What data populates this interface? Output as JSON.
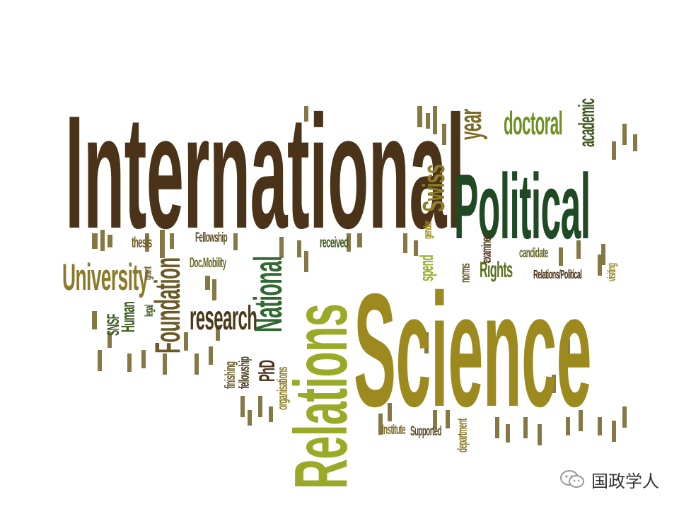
{
  "word_cloud": {
    "words": [
      {
        "text": "International",
        "color": "#4a3318"
      },
      {
        "text": "Science",
        "color": "#9c8a1e"
      },
      {
        "text": "Political",
        "color": "#1f4a24"
      },
      {
        "text": "Relations",
        "color": "#9aaa28"
      },
      {
        "text": "National",
        "color": "#2f6b30"
      },
      {
        "text": "University",
        "color": "#8a7a2a"
      },
      {
        "text": "Foundation",
        "color": "#6b5a28"
      },
      {
        "text": "research",
        "color": "#4a3a1a"
      },
      {
        "text": "doctoral",
        "color": "#6f8f22"
      },
      {
        "text": "academic",
        "color": "#3e5a1c"
      },
      {
        "text": "Swiss",
        "color": "#8d7e2a"
      },
      {
        "text": "year",
        "color": "#7a6a24"
      },
      {
        "text": "Human",
        "color": "#3a5a1e"
      },
      {
        "text": "SNSF",
        "color": "#3a5a1e"
      },
      {
        "text": "Rights",
        "color": "#5a6e1c"
      },
      {
        "text": "PhD",
        "color": "#4a3318"
      },
      {
        "text": "thesis",
        "color": "#6b5a28"
      },
      {
        "text": "spend",
        "color": "#9aaa28"
      },
      {
        "text": "Fellowship",
        "color": "#5a4a24"
      },
      {
        "text": "Doc.Mobility",
        "color": "#6b6a2c"
      },
      {
        "text": "received",
        "color": "#3e5a1c"
      },
      {
        "text": "organisations",
        "color": "#8d7e2a"
      },
      {
        "text": "fellowship",
        "color": "#4a3a1a"
      },
      {
        "text": "finishing",
        "color": "#6b5a28"
      },
      {
        "text": "Institute",
        "color": "#7a6a24"
      },
      {
        "text": "Supported",
        "color": "#5a4a24"
      },
      {
        "text": "department",
        "color": "#8a7a2a"
      },
      {
        "text": "norms",
        "color": "#6b5a28"
      },
      {
        "text": "gender",
        "color": "#9c8a1e"
      },
      {
        "text": "examines",
        "color": "#4a3318"
      },
      {
        "text": "candidate",
        "color": "#6b6a2c"
      },
      {
        "text": "Relations/Political",
        "color": "#4a3318"
      },
      {
        "text": "visiting",
        "color": "#9c8a1e"
      },
      {
        "text": "legal",
        "color": "#3e5a1c"
      },
      {
        "text": "grant",
        "color": "#6b5a28"
      }
    ]
  },
  "watermark": {
    "text": "国政学人",
    "icon": "wechat-icon"
  }
}
